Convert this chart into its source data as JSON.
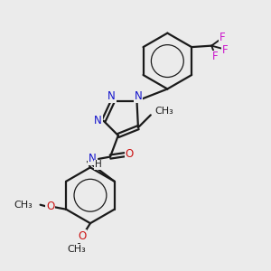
{
  "bg_color": "#ebebeb",
  "bond_color": "#1a1a1a",
  "N_color": "#1414cc",
  "O_color": "#cc1414",
  "F_color": "#cc14cc",
  "line_width": 1.6,
  "font_size": 8.5,
  "fig_size": [
    3.0,
    3.0
  ],
  "dpi": 100,
  "xlim": [
    0,
    10
  ],
  "ylim": [
    0,
    10
  ]
}
